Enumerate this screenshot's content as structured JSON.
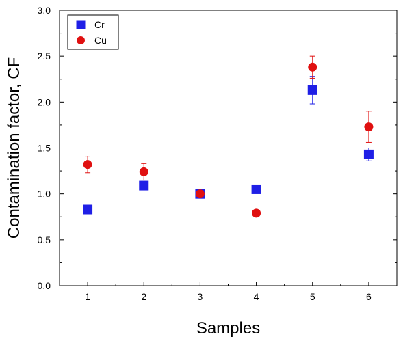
{
  "chart_data": {
    "type": "scatter",
    "xlabel": "Samples",
    "ylabel": "Contamination factor, CF",
    "x": [
      1,
      2,
      3,
      4,
      5,
      6
    ],
    "xlim": [
      0.5,
      6.5
    ],
    "ylim": [
      0.0,
      3.0
    ],
    "xticks": [
      "1",
      "2",
      "3",
      "4",
      "5",
      "6"
    ],
    "yticks": [
      "0.0",
      "0.5",
      "1.0",
      "1.5",
      "2.0",
      "2.5",
      "3.0"
    ],
    "grid": false,
    "legend_position": "top-left",
    "series": [
      {
        "name": "Cr",
        "marker": "square",
        "color": "#1f1fe6",
        "values": [
          0.83,
          1.09,
          1.0,
          1.05,
          2.13,
          1.43
        ],
        "errors": [
          0.0,
          0.0,
          0.0,
          0.0,
          0.15,
          0.07
        ]
      },
      {
        "name": "Cu",
        "marker": "circle",
        "color": "#e01010",
        "values": [
          1.32,
          1.24,
          1.0,
          0.79,
          2.38,
          1.73
        ],
        "errors": [
          0.09,
          0.09,
          0.0,
          0.0,
          0.12,
          0.17
        ]
      }
    ]
  }
}
